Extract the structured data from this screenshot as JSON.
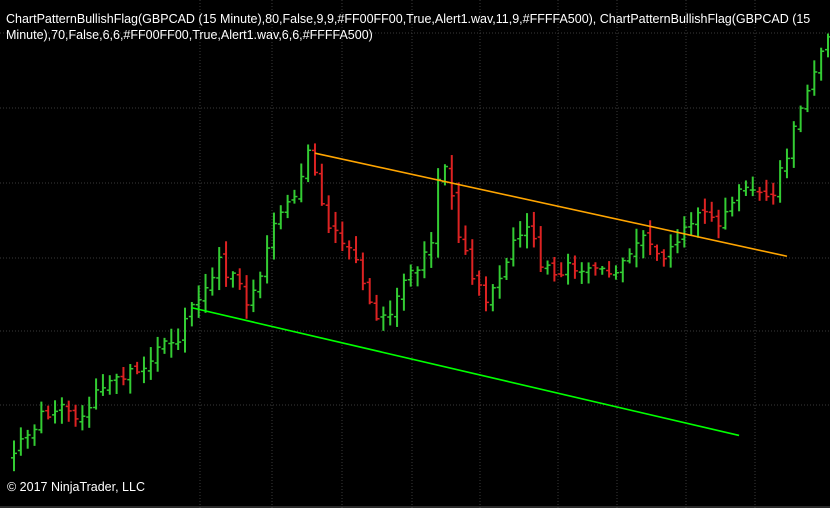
{
  "indicator_label": {
    "line1": "ChartPatternBullishFlag(GBPCAD (15 Minute),80,False,9,9,#FF00FF00,True,Alert1.wav,11,9,#FFFFA500), ChartPatternBullishFlag(GBPCAD (15",
    "line2": "Minute),70,False,6,6,#FF00FF00,True,Alert1.wav,6,6,#FFFFA500)"
  },
  "copyright": "© 2017 NinjaTrader, LLC",
  "colors": {
    "background": "#000000",
    "grid": "#3a3a3a",
    "up_bar": "#33cc33",
    "down_bar": "#dd2222",
    "resistance_line": "#ffa500",
    "support_line": "#00ff00",
    "text": "#ffffff"
  },
  "chart_data": {
    "type": "ohlc",
    "symbol": "GBPCAD",
    "interval": "15 Minute",
    "grid": true,
    "bar_count": 120,
    "price_range": [
      0,
      100
    ],
    "series": [
      {
        "kind": "flag-resistance-line",
        "color": "#ffa500",
        "from": {
          "bar": 44,
          "price": 72.5
        },
        "to": {
          "bar": 113,
          "price": 49.5
        }
      },
      {
        "kind": "flag-support-line",
        "color": "#00ff00",
        "from": {
          "bar": 26,
          "price": 38.0
        },
        "to": {
          "bar": 106,
          "price": 9.5
        }
      }
    ],
    "anchors": [
      [
        0,
        5
      ],
      [
        3,
        12
      ],
      [
        6,
        16
      ],
      [
        9,
        13
      ],
      [
        12,
        18
      ],
      [
        15,
        21
      ],
      [
        18,
        24
      ],
      [
        21,
        28
      ],
      [
        24,
        32
      ],
      [
        26,
        38
      ],
      [
        28,
        41
      ],
      [
        30,
        48
      ],
      [
        32,
        44
      ],
      [
        34,
        40
      ],
      [
        36,
        44
      ],
      [
        38,
        58
      ],
      [
        40,
        60
      ],
      [
        42,
        69
      ],
      [
        43,
        73
      ],
      [
        45,
        61
      ],
      [
        47,
        54
      ],
      [
        49,
        53
      ],
      [
        51,
        44
      ],
      [
        53,
        36
      ],
      [
        55,
        38
      ],
      [
        57,
        43
      ],
      [
        59,
        47
      ],
      [
        61,
        54
      ],
      [
        62,
        68
      ],
      [
        63,
        70
      ],
      [
        65,
        54
      ],
      [
        67,
        45
      ],
      [
        69,
        40
      ],
      [
        71,
        43
      ],
      [
        73,
        53
      ],
      [
        75,
        56
      ],
      [
        77,
        48
      ],
      [
        79,
        44
      ],
      [
        81,
        47
      ],
      [
        83,
        45
      ],
      [
        85,
        47
      ],
      [
        87,
        46
      ],
      [
        89,
        48
      ],
      [
        91,
        53
      ],
      [
        93,
        52
      ],
      [
        95,
        48
      ],
      [
        97,
        52
      ],
      [
        99,
        58
      ],
      [
        101,
        60
      ],
      [
        103,
        58
      ],
      [
        105,
        62
      ],
      [
        107,
        64
      ],
      [
        109,
        65
      ],
      [
        111,
        64
      ],
      [
        113,
        72
      ],
      [
        115,
        84
      ],
      [
        117,
        90
      ],
      [
        119,
        100
      ]
    ],
    "seed": 20170
  }
}
